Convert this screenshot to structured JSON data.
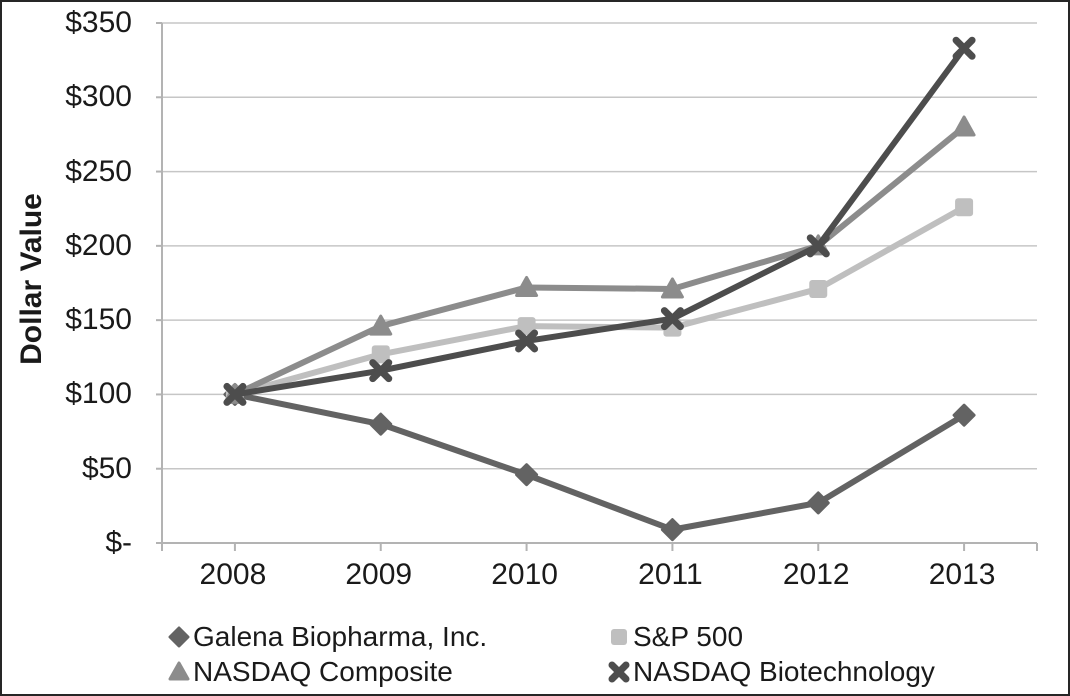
{
  "chart_data": {
    "type": "line",
    "title": "",
    "ylabel": "Dollar Value",
    "xlabel": "",
    "categories": [
      "2008",
      "2009",
      "2010",
      "2011",
      "2012",
      "2013"
    ],
    "ylim": [
      0,
      350
    ],
    "y_ticks": [
      {
        "value": 0,
        "label": "$-"
      },
      {
        "value": 50,
        "label": "$50"
      },
      {
        "value": 100,
        "label": "$100"
      },
      {
        "value": 150,
        "label": "$150"
      },
      {
        "value": 200,
        "label": "$200"
      },
      {
        "value": 250,
        "label": "$250"
      },
      {
        "value": 300,
        "label": "$300"
      },
      {
        "value": 350,
        "label": "$350"
      }
    ],
    "grid": "horizontal-only",
    "legend_position": "bottom-two-columns",
    "series": [
      {
        "name": "Galena Biopharma, Inc.",
        "marker": "diamond",
        "color": "#636363",
        "values": [
          100,
          80,
          46,
          9,
          27,
          86
        ]
      },
      {
        "name": "S&P 500",
        "marker": "square",
        "color": "#bfbfbf",
        "values": [
          100,
          127,
          146,
          145,
          171,
          226
        ]
      },
      {
        "name": "NASDAQ Composite",
        "marker": "triangle",
        "color": "#8c8c8c",
        "values": [
          100,
          146,
          172,
          171,
          200,
          280
        ]
      },
      {
        "name": "NASDAQ Biotechnology",
        "marker": "x",
        "color": "#4d4d4d",
        "values": [
          100,
          116,
          136,
          151,
          200,
          333
        ]
      }
    ]
  },
  "colors": {
    "background": "#ffffff",
    "gridline": "#c6c6c6",
    "axis": "#b3b3b3",
    "text": "#1a1a1a",
    "frame_border": "#262626"
  }
}
